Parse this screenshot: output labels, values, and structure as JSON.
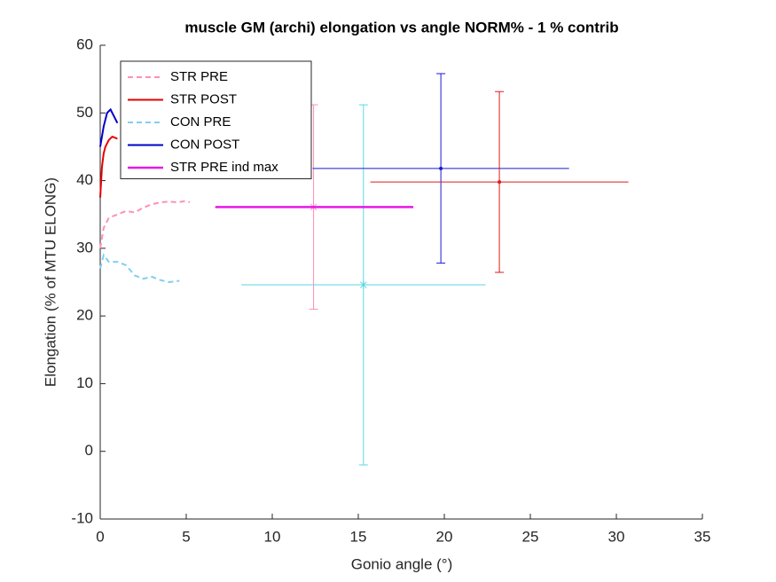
{
  "chart_data": {
    "type": "line",
    "title": "muscle GM (archi) elongation vs angle NORM% - 1 % contrib",
    "xlabel": "Gonio angle (°)",
    "ylabel": "Elongation (% of MTU ELONG)",
    "xlim": [
      0,
      35
    ],
    "ylim": [
      -10,
      60
    ],
    "xticks": [
      0,
      5,
      10,
      15,
      20,
      25,
      30,
      35
    ],
    "yticks": [
      -10,
      0,
      10,
      20,
      30,
      40,
      50,
      60
    ],
    "legend_loc": "upper left",
    "series": [
      {
        "name": "STR PRE",
        "color": "#ff8fb8",
        "dash": true,
        "width": 2,
        "x": [
          0,
          0.2,
          0.5,
          1,
          1.5,
          2,
          2.5,
          3,
          3.5,
          4,
          4.5,
          5,
          5.2
        ],
        "y": [
          30,
          33,
          34.5,
          35,
          35.5,
          35.3,
          36,
          36.5,
          36.8,
          36.9,
          36.8,
          37,
          36.8
        ]
      },
      {
        "name": "STR POST",
        "color": "#e60000",
        "dash": false,
        "width": 2,
        "x": [
          0,
          0.1,
          0.2,
          0.3,
          0.5,
          0.7,
          1
        ],
        "y": [
          37.5,
          42,
          44,
          45,
          46,
          46.5,
          46.2
        ]
      },
      {
        "name": "CON PRE",
        "color": "#7fcfef",
        "dash": true,
        "width": 2,
        "x": [
          0,
          0.2,
          0.5,
          1,
          1.5,
          2,
          2.5,
          3,
          3.5,
          4,
          4.6
        ],
        "y": [
          27,
          29,
          28,
          28,
          27.5,
          26,
          25.5,
          25.8,
          25.3,
          25,
          25.2
        ]
      },
      {
        "name": "CON POST",
        "color": "#0000cc",
        "dash": false,
        "width": 2,
        "x": [
          0,
          0.2,
          0.4,
          0.6,
          0.8,
          1
        ],
        "y": [
          45,
          48,
          50,
          50.5,
          49.5,
          48.5
        ]
      },
      {
        "name": "STR PRE ind max",
        "color": "#e619e6",
        "dash": false,
        "width": 2.5,
        "x": [
          6.7,
          18.2
        ],
        "y": [
          36.1,
          36.1
        ]
      }
    ],
    "errorbars": [
      {
        "color": "#ff8fb8",
        "marker": "star",
        "x": 12.4,
        "y": 36.1,
        "xerr": 5.75,
        "yerr": 15.1
      },
      {
        "color": "#5cd6e6",
        "marker": "star",
        "x": 15.3,
        "y": 24.6,
        "xerr": 7.1,
        "yerr": 26.6
      },
      {
        "color": "#1a1acc",
        "marker": "dot",
        "x": 19.8,
        "y": 41.8,
        "xerr": 7.45,
        "yerr": 14
      },
      {
        "color": "#e01a1a",
        "marker": "dot",
        "x": 23.2,
        "y": 39.8,
        "xerr": 7.5,
        "yerr": 13.35
      }
    ]
  }
}
